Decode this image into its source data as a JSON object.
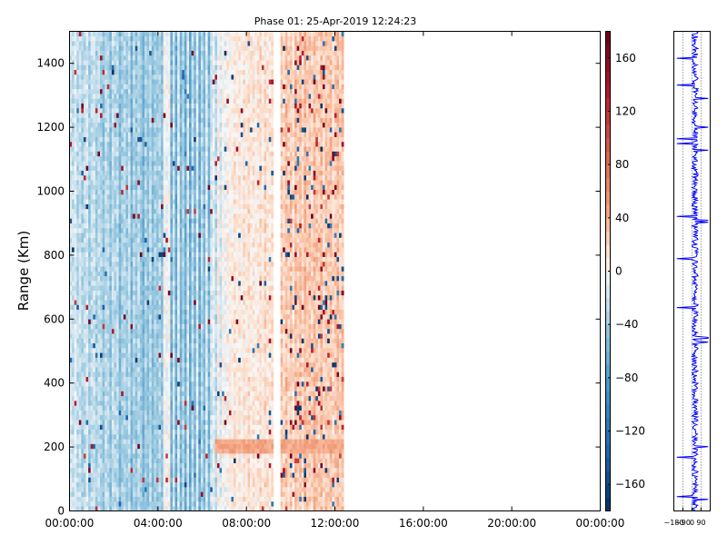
{
  "chart_data": [
    {
      "type": "heatmap",
      "title": "Phase 01: 25-Apr-2019 12:24:23",
      "xlabel": "",
      "ylabel": "Range (Km)",
      "x_ticks": [
        "00:00:00",
        "04:00:00",
        "08:00:00",
        "12:00:00",
        "16:00:00",
        "20:00:00",
        "00:00:00"
      ],
      "x_range_hours": [
        0,
        24
      ],
      "y_ticks": [
        0,
        200,
        400,
        600,
        800,
        1000,
        1200,
        1400
      ],
      "ylim": [
        0,
        1500
      ],
      "data_extent_hours": [
        0,
        12.4
      ],
      "gap_hours": [
        8.6,
        9.1
      ],
      "color_scale": {
        "min": -180,
        "max": 180,
        "colormap": "RdBu_r",
        "low_color": "#053061",
        "mid_color": "#f7f7f7",
        "high_color": "#67001f"
      },
      "column_mean_phase_deg": [
        -18,
        -26,
        -14,
        -30,
        -22,
        -35,
        -28,
        -16,
        -40,
        -24,
        -20,
        -38,
        -27,
        -32,
        -45,
        -25,
        -30,
        -50,
        -22,
        -34,
        -28,
        -55,
        -36,
        -30,
        -42,
        -24,
        -58,
        -30,
        -46,
        -26,
        -40,
        -60,
        -34,
        -48,
        -28,
        -52,
        -36,
        -44,
        -30,
        -48,
        2,
        -6,
        4,
        -62,
        -20,
        -70,
        -10,
        -58,
        -30,
        -66,
        -16,
        -72,
        -24,
        -60,
        -12,
        -68,
        -28,
        -56,
        -14,
        -60,
        -20,
        -10,
        -30,
        6,
        -18,
        4,
        -8,
        10,
        2,
        8,
        14,
        6,
        12,
        4,
        16,
        8,
        20,
        10,
        14,
        6,
        12,
        18,
        8,
        22,
        14,
        10,
        16,
        null,
        null,
        null,
        28,
        18,
        34,
        22,
        30,
        16,
        36,
        24,
        32,
        20,
        38,
        26,
        30,
        22,
        36,
        28,
        24,
        34,
        20,
        30,
        26,
        32,
        18,
        28,
        34,
        22,
        30
      ],
      "overlays": [
        {
          "description": "warm horizontal band",
          "range_km": [
            170,
            220
          ],
          "hours": [
            6.5,
            12.4
          ],
          "phase_deg": 45
        }
      ]
    },
    {
      "type": "colorbar",
      "ticks": [
        -160,
        -120,
        -80,
        -40,
        0,
        40,
        80,
        120,
        160
      ],
      "tick_labels": [
        "−160",
        "−120",
        "−80",
        "−40",
        "0",
        "40",
        "80",
        "120",
        "160"
      ],
      "range": [
        -180,
        180
      ]
    },
    {
      "type": "line",
      "description_axes": "phase profile vs range",
      "x_ticks": [
        -180,
        -90,
        0,
        90
      ],
      "x_tick_labels": [
        "−180",
        "−90",
        "0",
        "90"
      ],
      "xlim": [
        -180,
        180
      ],
      "ylim": [
        0,
        1500
      ],
      "line_color": "#0000ff",
      "grid": true
    }
  ]
}
